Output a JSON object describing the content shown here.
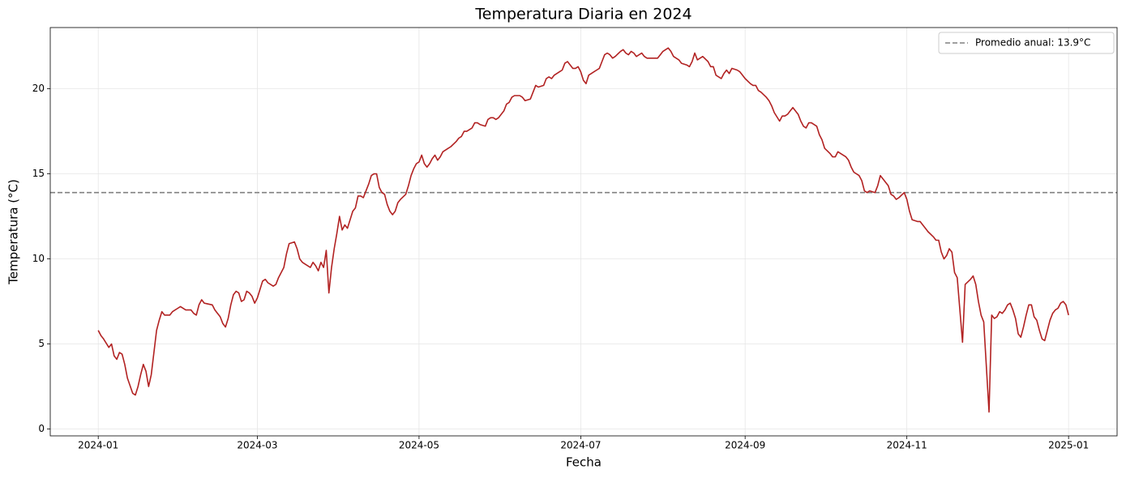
{
  "chart_data": {
    "type": "line",
    "title": "Temperatura Diaria en 2024",
    "x_label": "Fecha",
    "y_label": "Temperatura (°C)",
    "x": [
      0,
      1,
      2,
      4,
      5,
      6,
      7,
      8,
      9,
      10,
      11,
      13,
      14,
      15,
      16,
      17,
      18,
      19,
      20,
      21,
      22,
      23,
      24,
      25,
      26,
      27,
      28,
      30,
      31,
      33,
      35,
      36,
      37,
      38,
      39,
      40,
      43,
      44,
      46,
      47,
      48,
      49,
      50,
      51,
      52,
      53,
      54,
      55,
      56,
      57,
      58,
      59,
      60,
      61,
      62,
      63,
      64,
      66,
      67,
      68,
      70,
      71,
      72,
      74,
      75,
      76,
      77,
      78,
      80,
      81,
      82,
      83,
      84,
      85,
      86,
      87,
      88,
      89,
      90,
      91,
      92,
      93,
      94,
      95,
      96,
      97,
      98,
      99,
      100,
      101,
      102,
      103,
      104,
      105,
      106,
      107,
      108,
      109,
      110,
      111,
      112,
      113,
      114,
      116,
      117,
      118,
      119,
      120,
      121,
      122,
      123,
      124,
      125,
      126,
      127,
      128,
      129,
      130,
      132,
      133,
      135,
      136,
      137,
      138,
      139,
      141,
      142,
      143,
      144,
      146,
      147,
      148,
      149,
      150,
      151,
      153,
      154,
      155,
      156,
      157,
      159,
      160,
      161,
      163,
      164,
      165,
      166,
      168,
      169,
      170,
      171,
      172,
      174,
      175,
      176,
      177,
      179,
      180,
      181,
      182,
      183,
      184,
      185,
      187,
      188,
      189,
      190,
      191,
      192,
      193,
      194,
      195,
      197,
      198,
      199,
      200,
      201,
      202,
      203,
      205,
      206,
      207,
      208,
      209,
      211,
      212,
      213,
      214,
      215,
      216,
      217,
      218,
      219,
      220,
      222,
      223,
      224,
      225,
      226,
      227,
      228,
      230,
      231,
      232,
      233,
      235,
      236,
      237,
      238,
      239,
      241,
      242,
      243,
      244,
      246,
      247,
      248,
      249,
      250,
      252,
      253,
      254,
      255,
      257,
      258,
      259,
      260,
      261,
      262,
      264,
      265,
      266,
      267,
      268,
      269,
      271,
      272,
      273,
      274,
      276,
      277,
      278,
      279,
      280,
      282,
      283,
      284,
      285,
      287,
      288,
      289,
      290,
      291,
      293,
      294,
      295,
      296,
      298,
      299,
      300,
      301,
      302,
      304,
      305,
      306,
      307,
      309,
      310,
      311,
      312,
      313,
      315,
      316,
      317,
      318,
      319,
      320,
      321,
      322,
      323,
      324,
      325,
      326,
      327,
      329,
      330,
      331,
      332,
      333,
      334,
      336,
      337,
      338,
      339,
      340,
      341,
      342,
      343,
      344,
      345,
      346,
      347,
      348,
      349,
      350,
      351,
      352,
      353,
      354,
      355,
      356,
      357,
      358,
      359,
      360,
      361,
      362,
      363,
      364,
      365,
      366
    ],
    "series": [
      {
        "color": "#b22222",
        "values": [
          5.8,
          5.5,
          5.3,
          4.8,
          5.0,
          4.3,
          4.1,
          4.5,
          4.4,
          3.8,
          3.0,
          2.1,
          2.0,
          2.5,
          3.2,
          3.8,
          3.4,
          2.5,
          3.2,
          4.5,
          5.8,
          6.4,
          6.9,
          6.7,
          6.7,
          6.7,
          6.9,
          7.1,
          7.2,
          7.0,
          7.0,
          6.8,
          6.7,
          7.3,
          7.6,
          7.4,
          7.3,
          7.0,
          6.6,
          6.2,
          6.0,
          6.5,
          7.3,
          7.9,
          8.1,
          8.0,
          7.5,
          7.6,
          8.1,
          8.0,
          7.8,
          7.4,
          7.7,
          8.2,
          8.7,
          8.8,
          8.6,
          8.4,
          8.5,
          8.9,
          9.5,
          10.3,
          10.9,
          11.0,
          10.6,
          10.0,
          9.8,
          9.7,
          9.5,
          9.8,
          9.6,
          9.3,
          9.8,
          9.5,
          10.5,
          8.0,
          9.5,
          10.6,
          11.5,
          12.5,
          11.7,
          12.0,
          11.8,
          12.3,
          12.8,
          13.0,
          13.7,
          13.7,
          13.6,
          14.0,
          14.4,
          14.9,
          15.0,
          15.0,
          14.2,
          13.9,
          13.8,
          13.2,
          12.8,
          12.6,
          12.8,
          13.3,
          13.5,
          13.8,
          14.3,
          14.9,
          15.3,
          15.6,
          15.7,
          16.1,
          15.6,
          15.4,
          15.6,
          15.9,
          16.1,
          15.8,
          16.0,
          16.3,
          16.5,
          16.6,
          16.9,
          17.1,
          17.2,
          17.5,
          17.5,
          17.7,
          18.0,
          18.0,
          17.9,
          17.8,
          18.2,
          18.3,
          18.3,
          18.2,
          18.3,
          18.7,
          19.1,
          19.2,
          19.5,
          19.6,
          19.6,
          19.5,
          19.3,
          19.4,
          19.8,
          20.2,
          20.1,
          20.2,
          20.6,
          20.7,
          20.6,
          20.8,
          21.0,
          21.1,
          21.5,
          21.6,
          21.2,
          21.2,
          21.3,
          21.0,
          20.5,
          20.3,
          20.8,
          21.0,
          21.1,
          21.2,
          21.6,
          22.0,
          22.1,
          22.0,
          21.8,
          21.9,
          22.2,
          22.3,
          22.1,
          22.0,
          22.2,
          22.1,
          21.9,
          22.1,
          21.9,
          21.8,
          21.8,
          21.8,
          21.8,
          22.0,
          22.2,
          22.3,
          22.4,
          22.2,
          21.9,
          21.8,
          21.7,
          21.5,
          21.4,
          21.3,
          21.6,
          22.1,
          21.7,
          21.8,
          21.9,
          21.6,
          21.3,
          21.3,
          20.8,
          20.6,
          20.9,
          21.1,
          20.9,
          21.2,
          21.1,
          21.0,
          20.8,
          20.6,
          20.3,
          20.2,
          20.2,
          19.9,
          19.8,
          19.5,
          19.3,
          19.0,
          18.6,
          18.1,
          18.4,
          18.4,
          18.5,
          18.7,
          18.9,
          18.5,
          18.1,
          17.8,
          17.7,
          18.0,
          18.0,
          17.8,
          17.3,
          17.0,
          16.5,
          16.2,
          16.0,
          16.0,
          16.3,
          16.2,
          16.0,
          15.8,
          15.4,
          15.1,
          14.9,
          14.6,
          14.0,
          13.9,
          14.0,
          13.9,
          14.3,
          14.9,
          14.7,
          14.3,
          13.8,
          13.7,
          13.5,
          13.6,
          13.9,
          13.5,
          12.8,
          12.3,
          12.2,
          12.2,
          12.0,
          11.8,
          11.6,
          11.3,
          11.1,
          11.1,
          10.4,
          10.0,
          10.2,
          10.6,
          10.4,
          9.2,
          8.9,
          7.0,
          5.1,
          8.5,
          8.8,
          9.0,
          8.5,
          7.5,
          6.7,
          6.3,
          1.0,
          6.7,
          6.5,
          6.6,
          6.9,
          6.8,
          7.0,
          7.3,
          7.4,
          7.0,
          6.5,
          5.6,
          5.4,
          6.0,
          6.7,
          7.3,
          7.3,
          6.6,
          6.4,
          5.8,
          5.3,
          5.2,
          5.8,
          6.4,
          6.8,
          7.0,
          7.1,
          7.4,
          7.5,
          7.3,
          6.7
        ]
      }
    ],
    "hlines": [
      {
        "value": 13.9,
        "label": "Promedio anual: 13.9°C",
        "color": "#808080"
      }
    ],
    "xlim": [
      -18.1,
      384.3
    ],
    "ylim": [
      -0.4,
      23.6
    ],
    "xticks": [
      {
        "value": 0,
        "label": "2024-01"
      },
      {
        "value": 60,
        "label": "2024-03"
      },
      {
        "value": 121,
        "label": "2024-05"
      },
      {
        "value": 182,
        "label": "2024-07"
      },
      {
        "value": 244,
        "label": "2024-09"
      },
      {
        "value": 305,
        "label": "2024-11"
      },
      {
        "value": 366,
        "label": "2025-01"
      }
    ],
    "yticks": [
      0,
      5,
      10,
      15,
      20
    ],
    "grid": true,
    "legend": "upper right"
  }
}
